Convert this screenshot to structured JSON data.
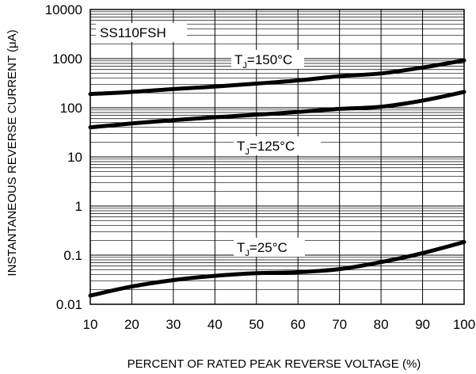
{
  "chart_data": {
    "type": "line",
    "title": "SS110FSH",
    "xlabel": "PERCENT OF RATED PEAK REVERSE VOLTAGE (%)",
    "ylabel": "INSTANTANEOUS REVERSE CURRENT (μA)",
    "xlim": [
      10,
      100
    ],
    "ylim": [
      0.01,
      10000
    ],
    "yscale": "log",
    "grid": true,
    "x_ticks": [
      "10",
      "20",
      "30",
      "40",
      "50",
      "60",
      "70",
      "80",
      "90",
      "100"
    ],
    "y_ticks": [
      "0.01",
      "0.1",
      "1",
      "10",
      "100",
      "1000",
      "10000"
    ],
    "x": [
      10,
      20,
      30,
      40,
      50,
      60,
      70,
      80,
      90,
      100
    ],
    "series": [
      {
        "name": "TJ=150°C",
        "label_main": "T",
        "label_sub": "J",
        "label_rest": "=150°C",
        "values": [
          190,
          210,
          240,
          270,
          310,
          360,
          440,
          500,
          660,
          920
        ]
      },
      {
        "name": "TJ=125°C",
        "label_main": "T",
        "label_sub": "J",
        "label_rest": "=125°C",
        "values": [
          40,
          48,
          56,
          64,
          72,
          82,
          95,
          105,
          140,
          210
        ]
      },
      {
        "name": "TJ=25°C",
        "label_main": "T",
        "label_sub": "J",
        "label_rest": "=25°C",
        "values": [
          0.015,
          0.023,
          0.031,
          0.038,
          0.043,
          0.045,
          0.052,
          0.072,
          0.11,
          0.185
        ]
      }
    ]
  }
}
